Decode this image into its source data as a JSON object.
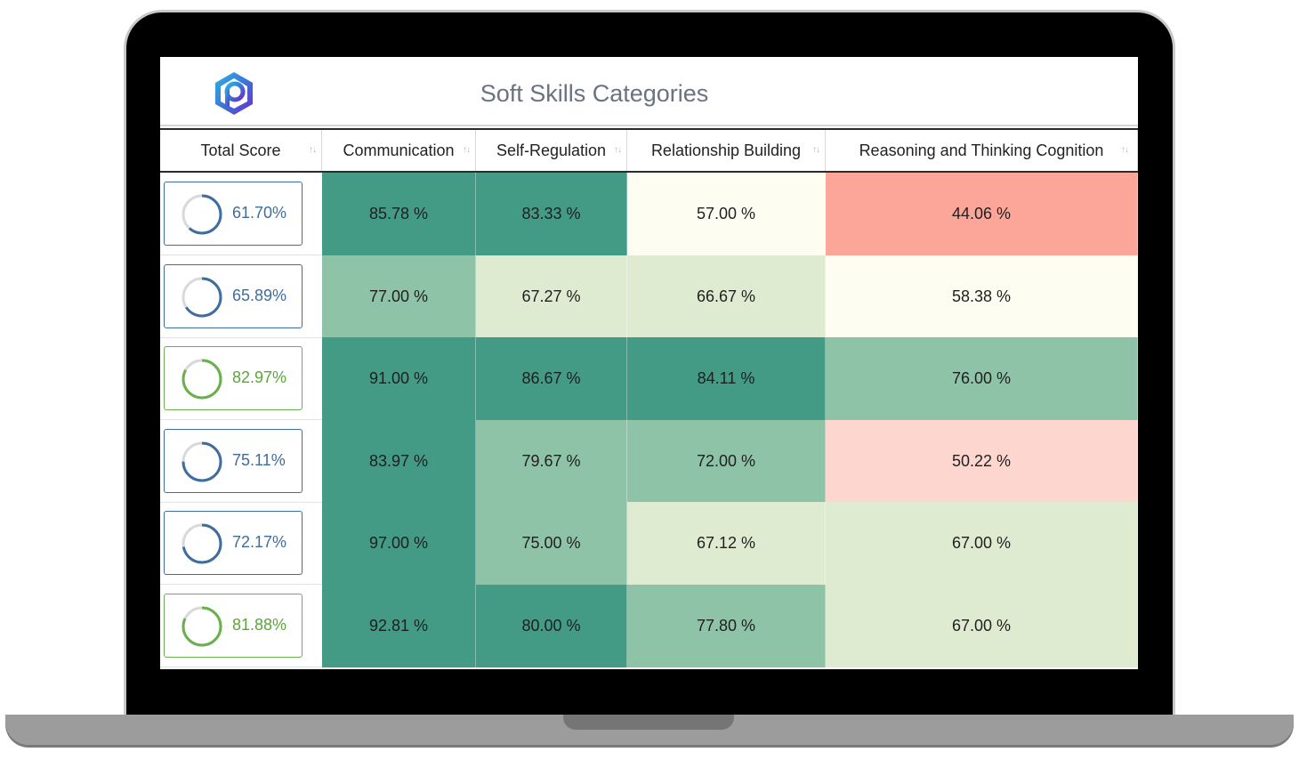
{
  "page": {
    "title": "Soft Skills Categories"
  },
  "table": {
    "columns": [
      {
        "label": "Total Score"
      },
      {
        "label": "Communication"
      },
      {
        "label": "Self-Regulation"
      },
      {
        "label": "Relationship Building"
      },
      {
        "label": "Reasoning and Thinking Cognition"
      }
    ],
    "rows": [
      {
        "total": {
          "text": "61.70%",
          "value": 61.7,
          "status": "blue"
        },
        "cells": [
          {
            "text": "85.78 %",
            "color": "#439a85"
          },
          {
            "text": "83.33 %",
            "color": "#439a85"
          },
          {
            "text": "57.00 %",
            "color": "#fdfdf1"
          },
          {
            "text": "44.06 %",
            "color": "#fca69a"
          }
        ]
      },
      {
        "total": {
          "text": "65.89%",
          "value": 65.89,
          "status": "blue"
        },
        "cells": [
          {
            "text": "77.00 %",
            "color": "#8fc3a8"
          },
          {
            "text": "67.27 %",
            "color": "#dfebd1"
          },
          {
            "text": "66.67 %",
            "color": "#dfebd1"
          },
          {
            "text": "58.38 %",
            "color": "#fdfdf1"
          }
        ]
      },
      {
        "total": {
          "text": "82.97%",
          "value": 82.97,
          "status": "green"
        },
        "cells": [
          {
            "text": "91.00 %",
            "color": "#439a85"
          },
          {
            "text": "86.67 %",
            "color": "#439a85"
          },
          {
            "text": "84.11 %",
            "color": "#439a85"
          },
          {
            "text": "76.00 %",
            "color": "#8fc3a8"
          }
        ]
      },
      {
        "total": {
          "text": "75.11%",
          "value": 75.11,
          "status": "blue"
        },
        "cells": [
          {
            "text": "83.97 %",
            "color": "#439a85"
          },
          {
            "text": "79.67 %",
            "color": "#8fc3a8"
          },
          {
            "text": "72.00 %",
            "color": "#8fc3a8"
          },
          {
            "text": "50.22 %",
            "color": "#fdd6d0"
          }
        ]
      },
      {
        "total": {
          "text": "72.17%",
          "value": 72.17,
          "status": "blue"
        },
        "cells": [
          {
            "text": "97.00 %",
            "color": "#439a85"
          },
          {
            "text": "75.00 %",
            "color": "#8fc3a8"
          },
          {
            "text": "67.12 %",
            "color": "#dfebd1"
          },
          {
            "text": "67.00 %",
            "color": "#dfebd1"
          }
        ]
      },
      {
        "total": {
          "text": "81.88%",
          "value": 81.88,
          "status": "green"
        },
        "cells": [
          {
            "text": "92.81 %",
            "color": "#439a85"
          },
          {
            "text": "80.00 %",
            "color": "#439a85"
          },
          {
            "text": "77.80 %",
            "color": "#8fc3a8"
          },
          {
            "text": "67.00 %",
            "color": "#dfebd1"
          }
        ]
      }
    ]
  },
  "colors": {
    "ring_blue": "#3f6d9e",
    "ring_green": "#6ab04c",
    "ring_track": "#d9d9d9"
  }
}
